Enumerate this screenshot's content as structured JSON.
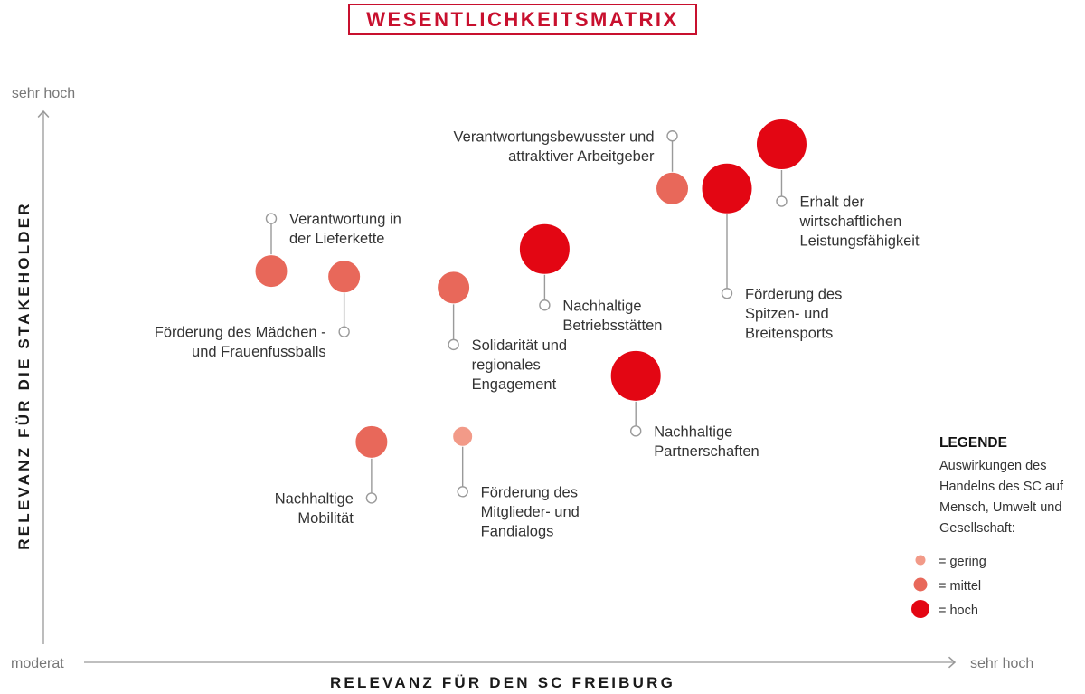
{
  "title": "WESENTLICHKEITSMATRIX",
  "chart_data": {
    "type": "scatter",
    "xlabel": "RELEVANZ FÜR DEN SC FREIBURG",
    "ylabel": "RELEVANZ FÜR DIE STAKEHOLDER",
    "x_axis_low": "moderat",
    "x_axis_high": "sehr hoch",
    "y_axis_high": "sehr hoch",
    "xlim": [
      0,
      100
    ],
    "ylim": [
      0,
      100
    ],
    "grid": false,
    "legend_placement": "bottom-right",
    "points": [
      {
        "label": [
          "Verantwortungsbewusster und",
          "attraktiver Arbeitgeber"
        ],
        "x": 69,
        "y": 86,
        "impact": "mittel"
      },
      {
        "label": [
          "Förderung des",
          "Spitzen- und",
          "Breitensports"
        ],
        "x": 75,
        "y": 86,
        "impact": "hoch"
      },
      {
        "label": [
          "Erhalt der",
          "wirtschaftlichen",
          "Leistungsfähigkeit"
        ],
        "x": 81,
        "y": 94,
        "impact": "hoch"
      },
      {
        "label": [
          "Verantwortung in",
          "der Lieferkette"
        ],
        "x": 25,
        "y": 71,
        "impact": "mittel"
      },
      {
        "label": [
          "Förderung des Mädchen -",
          "und Frauenfussballs"
        ],
        "x": 33,
        "y": 70,
        "impact": "mittel"
      },
      {
        "label": [
          "Solidarität und",
          "regionales",
          "Engagement"
        ],
        "x": 45,
        "y": 68,
        "impact": "mittel"
      },
      {
        "label": [
          "Nachhaltige",
          "Betriebsstätten"
        ],
        "x": 55,
        "y": 75,
        "impact": "hoch"
      },
      {
        "label": [
          "Nachhaltige",
          "Partnerschaften"
        ],
        "x": 65,
        "y": 52,
        "impact": "hoch"
      },
      {
        "label": [
          "Nachhaltige",
          "Mobilität"
        ],
        "x": 36,
        "y": 40,
        "impact": "mittel"
      },
      {
        "label": [
          "Förderung des",
          "Mitglieder- und",
          "Fandialogs"
        ],
        "x": 46,
        "y": 41,
        "impact": "gering"
      }
    ]
  },
  "legend": {
    "title": "LEGENDE",
    "description": [
      "Auswirkungen des",
      "Handelns des SC auf",
      "Mensch, Umwelt und",
      "Gesellschaft:"
    ],
    "items": [
      {
        "impact": "gering",
        "label": "= gering"
      },
      {
        "impact": "mittel",
        "label": "= mittel"
      },
      {
        "impact": "hoch",
        "label": "= hoch"
      }
    ]
  },
  "colors": {
    "gering": "#f29a88",
    "mittel": "#e8685a",
    "hoch": "#e30613",
    "accent": "#c8102e"
  }
}
